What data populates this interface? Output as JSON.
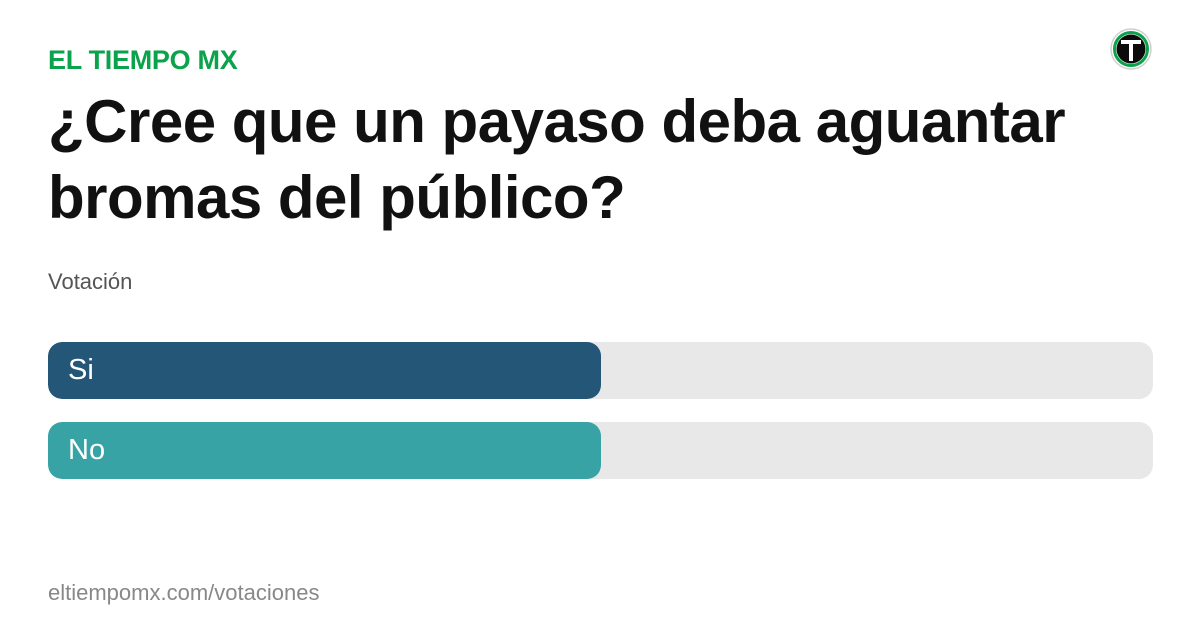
{
  "brand": {
    "name": "EL TIEMPO MX",
    "color": "#0aa24a"
  },
  "logo": {
    "icon": "el-tiempo-t-logo-icon",
    "letter": "T",
    "ring_color": "#0aa24a"
  },
  "title": "¿Cree que un payaso deba aguantar bromas del público?",
  "subtitle": "Votación",
  "poll": {
    "options": [
      {
        "label": "Si",
        "share": 0.5,
        "color": "#235677"
      },
      {
        "label": "No",
        "share": 0.5,
        "color": "#37a3a5"
      }
    ],
    "track_color": "#e8e8e8"
  },
  "footer": {
    "url": "eltiempomx.com/votaciones"
  }
}
